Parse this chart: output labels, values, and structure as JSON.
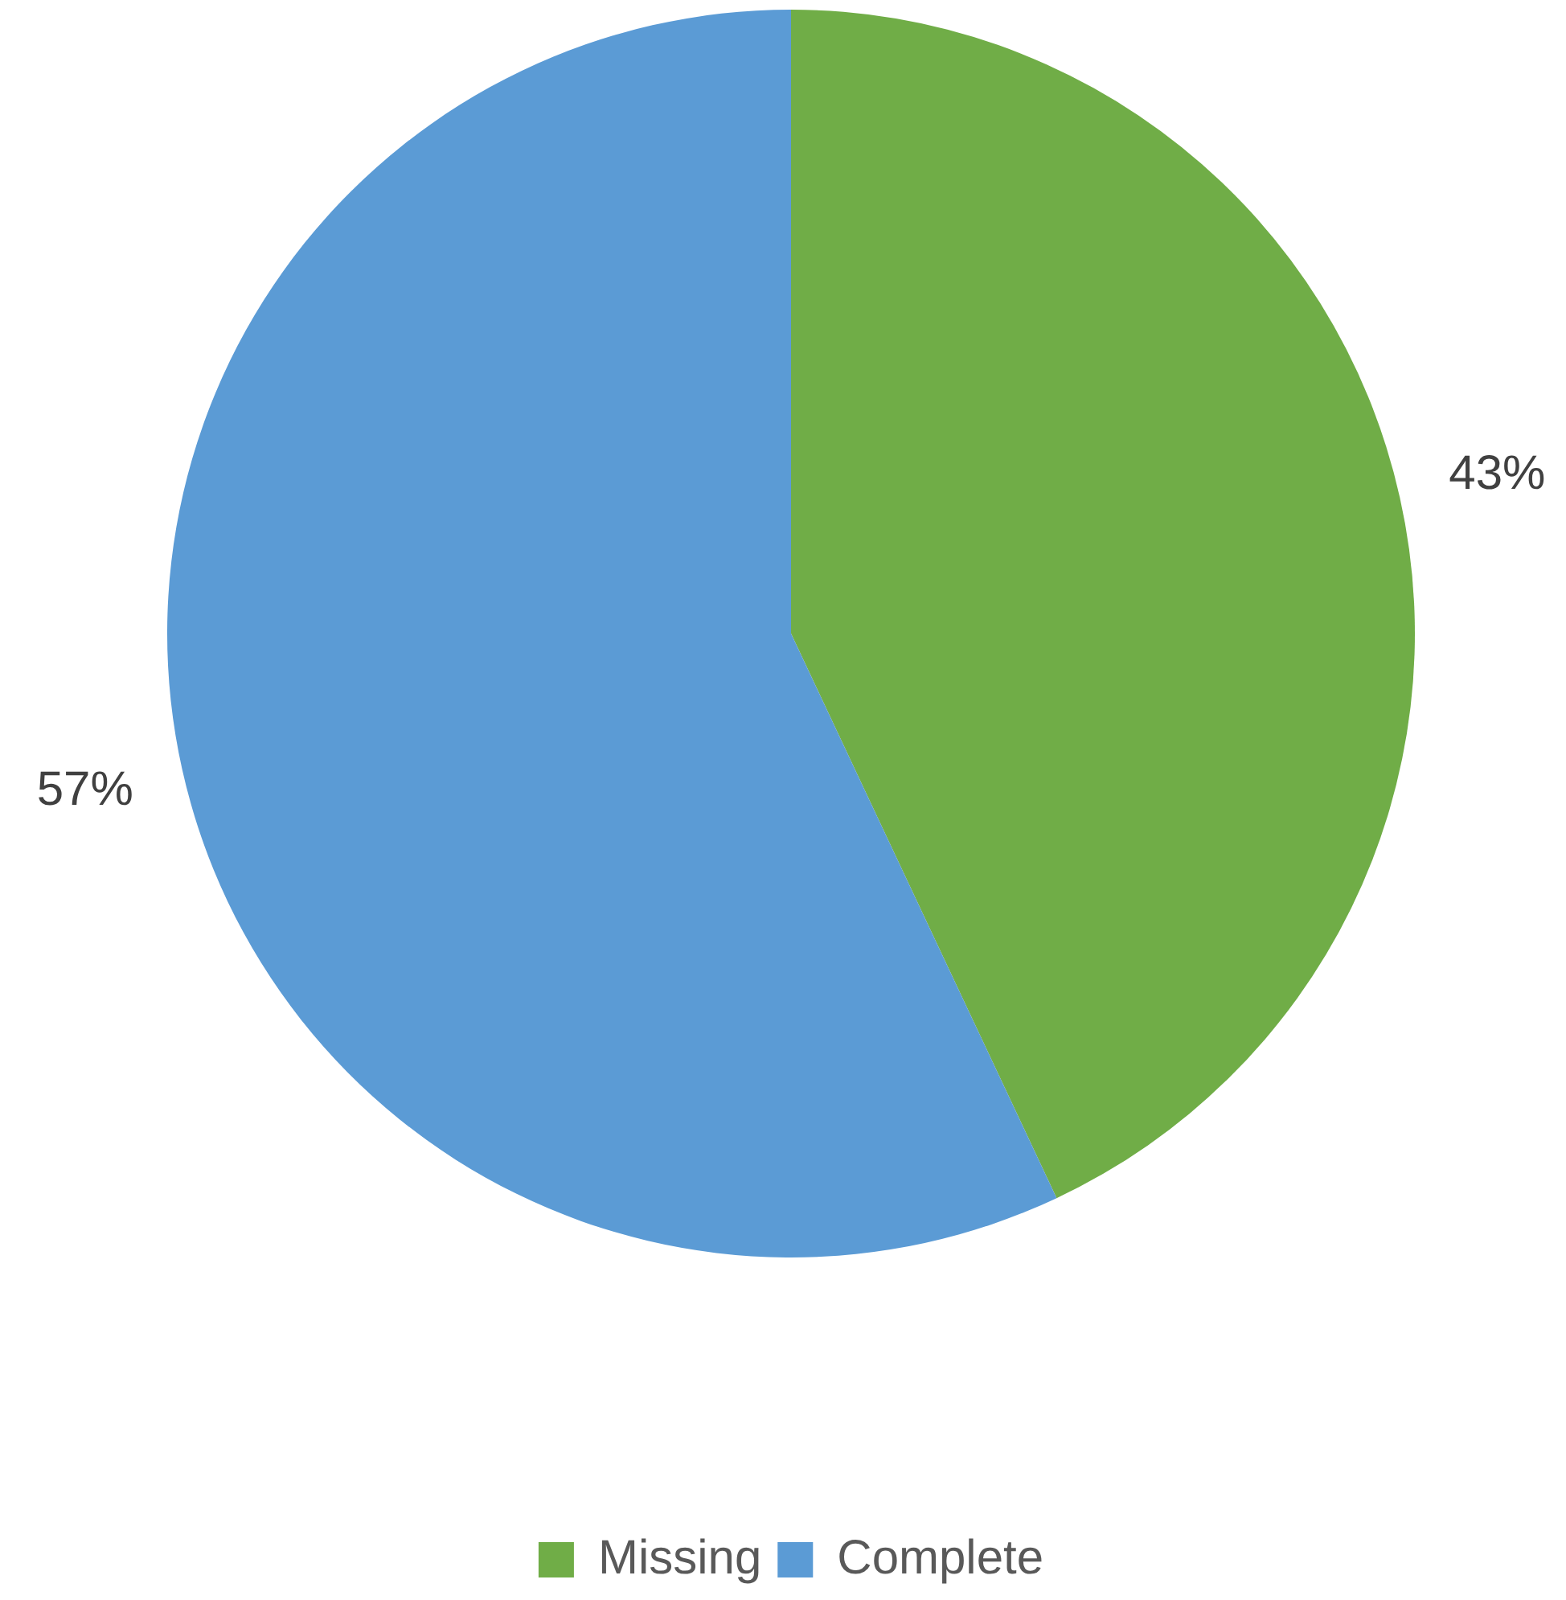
{
  "chart_data": {
    "type": "pie",
    "categories": [
      "Missing",
      "Complete"
    ],
    "values": [
      43,
      57
    ],
    "colors": [
      "#70ad47",
      "#5b9bd5"
    ],
    "value_labels": [
      "43%",
      "57%"
    ],
    "legend": "bottom"
  }
}
